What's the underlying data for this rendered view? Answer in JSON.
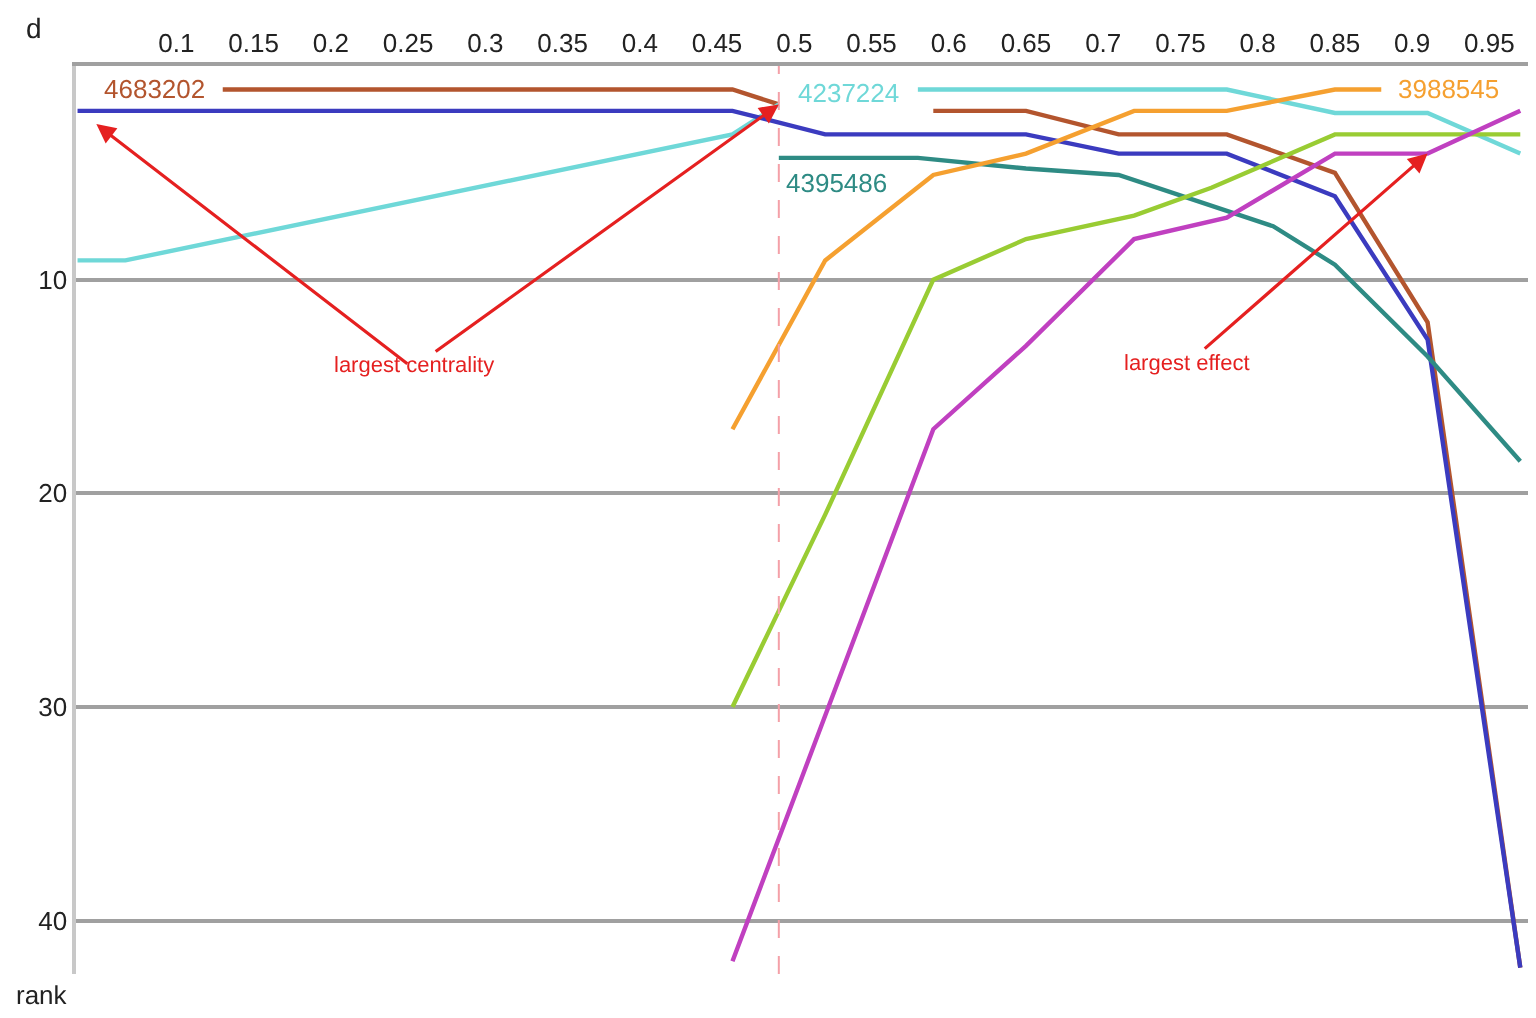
{
  "chart_data": {
    "type": "line",
    "xlabel": "d",
    "ylabel": "rank",
    "xlim": [
      0.035,
      0.975
    ],
    "ylim": [
      42.5,
      0
    ],
    "xticks": [
      0.1,
      0.15,
      0.2,
      0.25,
      0.3,
      0.35,
      0.4,
      0.45,
      0.5,
      0.55,
      0.6,
      0.65,
      0.7,
      0.75,
      0.8,
      0.85,
      0.9,
      0.95
    ],
    "yticks": [
      10,
      20,
      30,
      40
    ],
    "grid": "y",
    "legend": false,
    "marker": "none",
    "line_style": "solid",
    "series": [
      {
        "name": "4683202",
        "color": "#b3552e",
        "x": [
          0.13,
          0.46,
          0.49,
          0.52,
          0.59,
          0.65,
          0.71,
          0.78,
          0.85,
          0.91,
          0.97
        ],
        "values": [
          1.1,
          1.1,
          1.8,
          null,
          2.1,
          2.1,
          3.2,
          3.2,
          5.0,
          12,
          42.2
        ]
      },
      {
        "name": "4237224",
        "color": "#6fd8d8",
        "x": [
          0.036,
          0.067,
          0.46,
          0.49,
          0.52,
          0.58,
          0.78,
          0.85,
          0.91,
          0.97
        ],
        "values": [
          9.1,
          9.1,
          3.2,
          1.8,
          null,
          1.1,
          1.1,
          2.2,
          2.2,
          4.1
        ]
      },
      {
        "color": "#3b3bbf",
        "x": [
          0.036,
          0.46,
          0.52,
          0.65,
          0.71,
          0.78,
          0.85,
          0.91,
          0.97
        ],
        "values": [
          2.1,
          2.1,
          3.2,
          3.2,
          4.1,
          4.1,
          6.1,
          12.8,
          42.2
        ]
      },
      {
        "name": "4395486",
        "color": "#2e8b84",
        "x": [
          0.49,
          0.58,
          0.65,
          0.71,
          0.81,
          0.85,
          0.91,
          0.97
        ],
        "values": [
          4.3,
          4.3,
          4.8,
          5.1,
          7.5,
          9.3,
          13.6,
          18.5
        ]
      },
      {
        "name": "3988545",
        "color": "#f5a030",
        "x": [
          0.46,
          0.52,
          0.59,
          0.65,
          0.72,
          0.78,
          0.85,
          0.88
        ],
        "values": [
          17,
          9.1,
          5.1,
          4.1,
          2.1,
          2.1,
          1.1,
          1.1
        ]
      },
      {
        "color": "#99cc33",
        "x": [
          0.46,
          0.52,
          0.59,
          0.65,
          0.72,
          0.77,
          0.85,
          0.97
        ],
        "values": [
          30,
          21,
          10,
          8.1,
          7.0,
          5.7,
          3.2,
          3.2
        ]
      },
      {
        "color": "#c040c0",
        "x": [
          0.46,
          0.59,
          0.65,
          0.72,
          0.78,
          0.85,
          0.91,
          0.97
        ],
        "values": [
          41.9,
          17,
          13.1,
          8.1,
          7.1,
          4.1,
          4.1,
          2.1
        ]
      }
    ],
    "ref_lines": [
      {
        "axis": "x",
        "value": 0.49,
        "color": "#f4a0a8",
        "line_style": "dashed"
      }
    ],
    "annotations": [
      {
        "text": "largest centrality",
        "x": 0.49,
        "y": 1.8
      },
      {
        "text": "largest effect",
        "x": 0.91,
        "y": 4.1
      }
    ]
  }
}
